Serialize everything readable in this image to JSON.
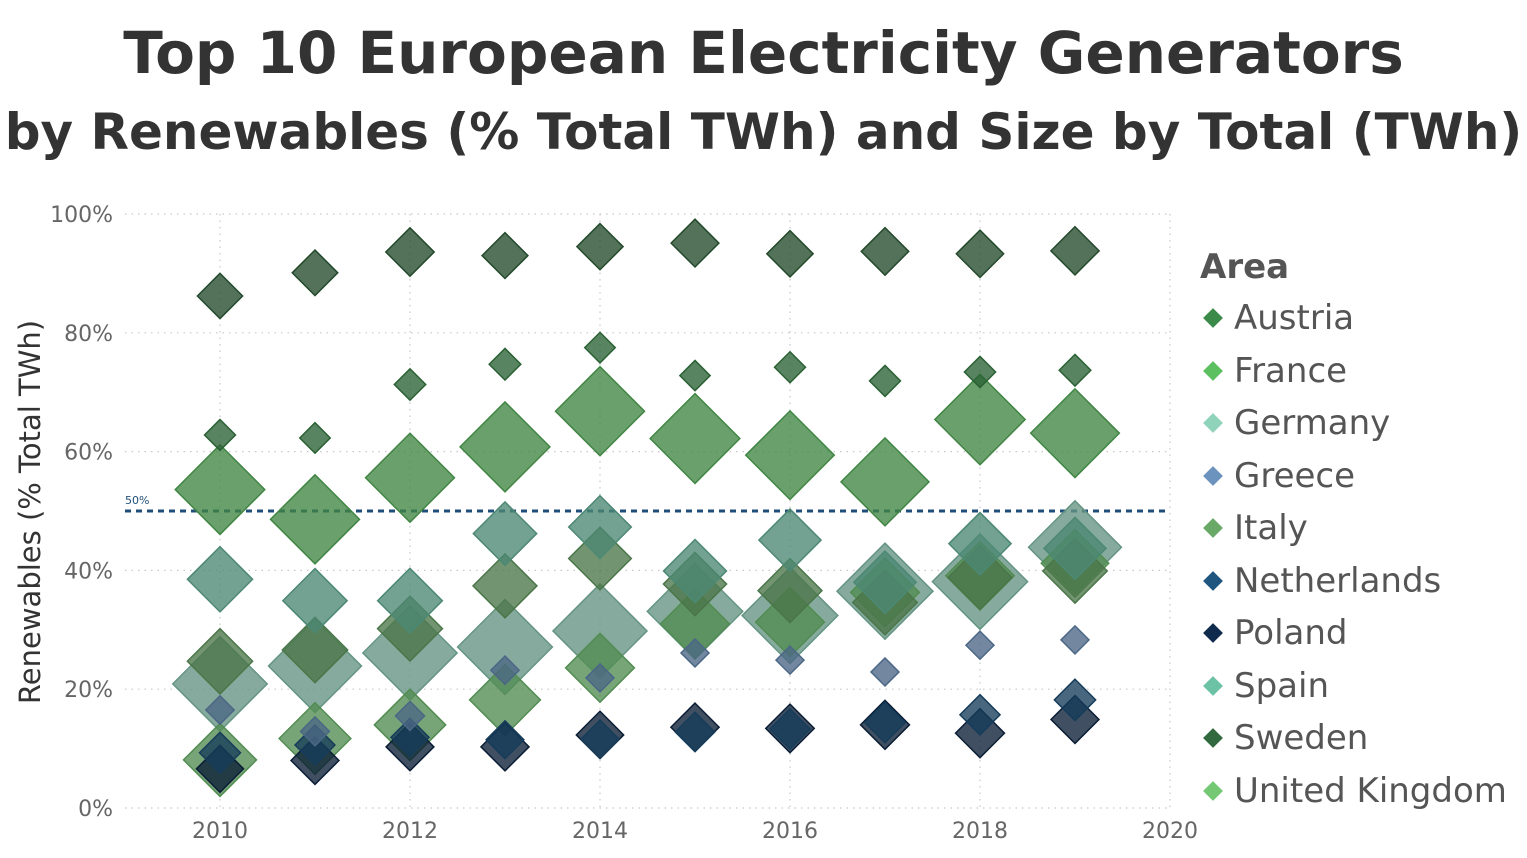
{
  "title": "Top 10 European Electricity Generators",
  "subtitle": "by Renewables (% Total TWh) and Size by Total (TWh)",
  "chart_data": {
    "type": "scatter",
    "ylabel": "Renewables (% Total TWh)",
    "xlim": [
      2009,
      2020
    ],
    "ylim": [
      0,
      100
    ],
    "x_ticks": [
      "2010",
      "2012",
      "2014",
      "2016",
      "2018",
      "2020"
    ],
    "y_ticks": [
      "0%",
      "20%",
      "40%",
      "60%",
      "80%",
      "100%"
    ],
    "reference_line": {
      "value": 50,
      "label": "50%",
      "color": "#1f4e79"
    },
    "grid": "dotted",
    "legend_title": "Area",
    "legend_placement": "right",
    "series": [
      {
        "name": "Austria",
        "color": "#3c8a4a",
        "x": [
          2010,
          2011,
          2012,
          2013,
          2014,
          2015,
          2016,
          2017,
          2018,
          2019
        ],
        "y": [
          62.8,
          62.3,
          71.3,
          74.7,
          77.5,
          72.8,
          74.2,
          71.9,
          73.4,
          73.7
        ],
        "size": [
          68,
          66,
          70,
          71,
          66,
          65,
          68,
          68,
          69,
          71
        ]
      },
      {
        "name": "France",
        "color": "#5cbf60",
        "x": [
          2010,
          2011,
          2012,
          2013,
          2014,
          2015,
          2016,
          2017,
          2018,
          2019
        ],
        "y": [
          53.6,
          48.6,
          55.6,
          60.8,
          66.8,
          62.2,
          59.4,
          54.9,
          65.4,
          63.1
        ],
        "size": [
          569,
          562,
          561,
          573,
          562,
          571,
          556,
          549,
          579,
          558
        ]
      },
      {
        "name": "Germany",
        "color": "#8fd3ba",
        "x": [
          2010,
          2011,
          2012,
          2013,
          2014,
          2015,
          2016,
          2017,
          2018,
          2019
        ],
        "y": [
          20.9,
          23.9,
          26.1,
          27.1,
          29.8,
          33.1,
          32.4,
          36.5,
          38.1,
          43.9
        ],
        "size": [
          633,
          613,
          630,
          638,
          627,
          647,
          650,
          654,
          643,
          612
        ]
      },
      {
        "name": "Greece",
        "color": "#6b93be",
        "x": [
          2010,
          2011,
          2012,
          2013,
          2014,
          2015,
          2016,
          2017,
          2018,
          2019
        ],
        "y": [
          16.5,
          12.9,
          15.5,
          23.2,
          21.9,
          26.1,
          24.9,
          22.9,
          27.4,
          28.3
        ],
        "size": [
          57,
          59,
          60,
          57,
          51,
          52,
          54,
          55,
          53,
          48
        ]
      },
      {
        "name": "Italy",
        "color": "#6aa868",
        "x": [
          2010,
          2011,
          2012,
          2013,
          2014,
          2015,
          2016,
          2017,
          2018,
          2019
        ],
        "y": [
          24.7,
          26.6,
          30.2,
          37.4,
          42.0,
          37.7,
          36.6,
          34.6,
          38.8,
          39.9
        ],
        "size": [
          302,
          303,
          299,
          290,
          279,
          283,
          290,
          296,
          290,
          294
        ]
      },
      {
        "name": "Netherlands",
        "color": "#1f5680",
        "x": [
          2010,
          2011,
          2012,
          2013,
          2014,
          2015,
          2016,
          2017,
          2018,
          2019
        ],
        "y": [
          9.3,
          10.6,
          11.9,
          11.5,
          11.6,
          12.8,
          13.3,
          14.4,
          15.7,
          18.2
        ],
        "size": [
          119,
          113,
          103,
          101,
          103,
          110,
          115,
          117,
          114,
          121
        ]
      },
      {
        "name": "Poland",
        "color": "#0f2a4c",
        "x": [
          2010,
          2011,
          2012,
          2013,
          2014,
          2015,
          2016,
          2017,
          2018,
          2019
        ],
        "y": [
          6.6,
          8.0,
          10.3,
          10.3,
          12.3,
          13.6,
          13.4,
          14.0,
          12.6,
          14.9
        ],
        "size": [
          157,
          163,
          162,
          164,
          159,
          165,
          167,
          170,
          170,
          163
        ]
      },
      {
        "name": "Spain",
        "color": "#6cc2a4",
        "x": [
          2010,
          2011,
          2012,
          2013,
          2014,
          2015,
          2016,
          2017,
          2018,
          2019
        ],
        "y": [
          38.5,
          34.9,
          34.9,
          46.2,
          47.3,
          39.9,
          45.1,
          38.0,
          44.5,
          43.7
        ],
        "size": [
          301,
          293,
          297,
          285,
          278,
          281,
          274,
          276,
          275,
          273
        ]
      },
      {
        "name": "Sweden",
        "color": "#33693f",
        "x": [
          2010,
          2011,
          2012,
          2013,
          2014,
          2015,
          2016,
          2017,
          2018,
          2019
        ],
        "y": [
          86.2,
          90.1,
          93.6,
          93.0,
          94.5,
          95.1,
          93.3,
          93.7,
          93.3,
          93.8
        ],
        "size": [
          145,
          147,
          166,
          149,
          151,
          162,
          152,
          160,
          159,
          165
        ]
      },
      {
        "name": "United Kingdom",
        "color": "#74c874",
        "x": [
          2010,
          2011,
          2012,
          2013,
          2014,
          2015,
          2016,
          2017,
          2018,
          2019
        ],
        "y": [
          8.1,
          11.7,
          14.0,
          18.2,
          23.6,
          31.0,
          31.3,
          36.3,
          39.1,
          41.2
        ],
        "size": [
          378,
          365,
          361,
          356,
          336,
          336,
          336,
          335,
          332,
          323
        ]
      }
    ]
  }
}
